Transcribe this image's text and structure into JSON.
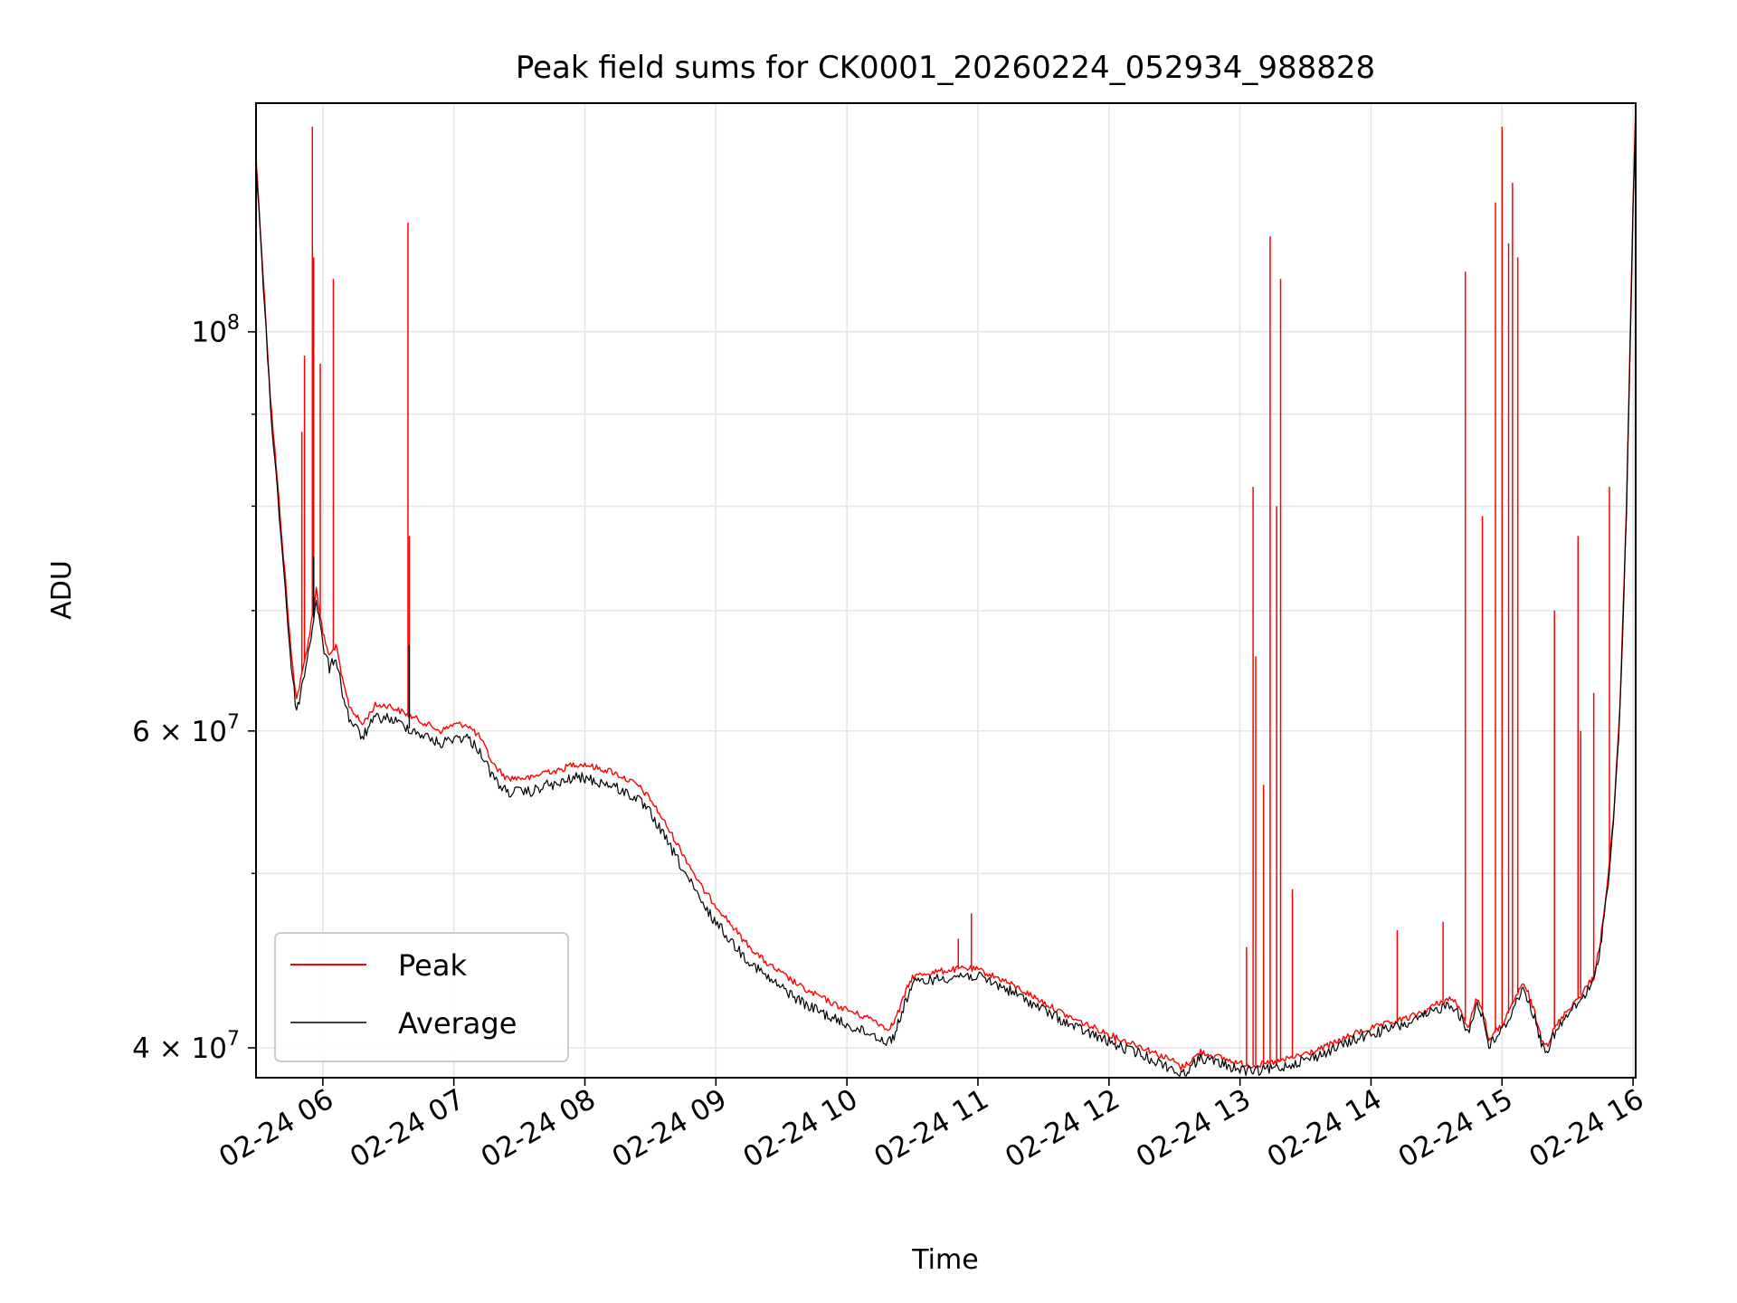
{
  "chart_data": {
    "type": "line",
    "title": "Peak field sums for CK0001_20260224_052934_988828",
    "xlabel": "Time",
    "ylabel": "ADU",
    "x_unit": "hour of 2026-02-24",
    "xlim": [
      5.49,
      16.02
    ],
    "ylim": [
      38500000,
      134000000
    ],
    "yscale": "log",
    "grid": true,
    "legend_position": "lower-left",
    "x_tick_values": [
      6,
      7,
      8,
      9,
      10,
      11,
      12,
      13,
      14,
      15,
      16
    ],
    "x_tick_labels": [
      "02-24 06",
      "02-24 07",
      "02-24 08",
      "02-24 09",
      "02-24 10",
      "02-24 11",
      "02-24 12",
      "02-24 13",
      "02-24 14",
      "02-24 15",
      "02-24 16"
    ],
    "y_major_ticks": [
      {
        "value": 40000000,
        "mantissa": "4",
        "exponent": "7"
      },
      {
        "value": 60000000,
        "mantissa": "6",
        "exponent": "7"
      },
      {
        "value": 100000000,
        "mantissa": "",
        "exponent": "8"
      }
    ],
    "y_minor_ticks": [
      50000000,
      70000000,
      80000000,
      90000000
    ],
    "colors": {
      "peak": "#ff0000",
      "average": "#000000",
      "grid": "#e6e6e6"
    },
    "series": [
      {
        "name": "Peak",
        "color": "#ff0000",
        "x": [
          5.49,
          5.6,
          5.7,
          5.76,
          5.8,
          5.85,
          5.9,
          5.95,
          6.0,
          6.05,
          6.1,
          6.15,
          6.2,
          6.3,
          6.4,
          6.5,
          6.6,
          6.7,
          6.8,
          6.9,
          7.0,
          7.1,
          7.2,
          7.3,
          7.4,
          7.5,
          7.6,
          7.7,
          7.8,
          7.9,
          8.0,
          8.1,
          8.2,
          8.3,
          8.4,
          8.5,
          8.6,
          8.7,
          8.8,
          8.9,
          9.0,
          9.1,
          9.2,
          9.3,
          9.4,
          9.5,
          9.6,
          9.7,
          9.8,
          9.9,
          10.0,
          10.1,
          10.2,
          10.3,
          10.35,
          10.4,
          10.45,
          10.5,
          10.6,
          10.7,
          10.8,
          10.9,
          11.0,
          11.1,
          11.2,
          11.3,
          11.4,
          11.5,
          11.6,
          11.7,
          11.8,
          11.9,
          12.0,
          12.1,
          12.2,
          12.3,
          12.4,
          12.5,
          12.55,
          12.6,
          12.65,
          12.7,
          12.8,
          12.9,
          13.0,
          13.1,
          13.2,
          13.3,
          13.4,
          13.5,
          13.6,
          13.7,
          13.8,
          13.9,
          14.0,
          14.1,
          14.2,
          14.3,
          14.4,
          14.5,
          14.6,
          14.65,
          14.7,
          14.75,
          14.8,
          14.85,
          14.9,
          14.95,
          15.0,
          15.05,
          15.1,
          15.15,
          15.2,
          15.25,
          15.3,
          15.35,
          15.4,
          15.5,
          15.6,
          15.7,
          15.75,
          15.8,
          15.85,
          15.9,
          15.95,
          16.0,
          16.02
        ],
        "y": [
          125000000,
          92000000,
          75000000,
          66000000,
          62500000,
          65000000,
          68000000,
          72000000,
          68000000,
          66000000,
          67000000,
          64000000,
          62000000,
          60500000,
          62000000,
          62000000,
          61500000,
          61000000,
          60500000,
          60000000,
          60500000,
          60500000,
          59500000,
          57500000,
          56500000,
          56500000,
          56500000,
          57000000,
          57000000,
          57500000,
          57500000,
          57200000,
          57000000,
          56500000,
          56000000,
          55000000,
          53500000,
          52000000,
          50500000,
          49000000,
          48000000,
          47000000,
          46000000,
          45200000,
          44500000,
          44000000,
          43500000,
          43000000,
          42700000,
          42300000,
          42000000,
          41700000,
          41500000,
          41000000,
          41200000,
          42000000,
          43000000,
          43800000,
          44000000,
          44100000,
          44200000,
          44300000,
          44200000,
          43900000,
          43600000,
          43200000,
          42800000,
          42400000,
          42000000,
          41600000,
          41300000,
          41000000,
          40700000,
          40400000,
          40200000,
          39900000,
          39600000,
          39300000,
          39000000,
          39200000,
          39500000,
          39800000,
          39600000,
          39400000,
          39200000,
          39100000,
          39200000,
          39300000,
          39500000,
          39700000,
          39900000,
          40200000,
          40500000,
          40800000,
          41000000,
          41200000,
          41400000,
          41600000,
          41900000,
          42300000,
          42600000,
          42400000,
          41600000,
          41100000,
          42700000,
          42000000,
          40400000,
          40800000,
          41200000,
          41800000,
          42600000,
          43400000,
          42900000,
          41800000,
          40500000,
          40200000,
          41000000,
          42000000,
          42800000,
          43800000,
          45800000,
          49000000,
          53500000,
          62000000,
          80000000,
          118000000,
          134000000
        ]
      },
      {
        "name": "Average",
        "color": "#000000",
        "x": [
          5.49,
          5.6,
          5.7,
          5.76,
          5.8,
          5.85,
          5.9,
          5.95,
          6.0,
          6.05,
          6.1,
          6.15,
          6.2,
          6.3,
          6.4,
          6.5,
          6.6,
          6.7,
          6.8,
          6.9,
          7.0,
          7.1,
          7.2,
          7.3,
          7.4,
          7.5,
          7.6,
          7.7,
          7.8,
          7.9,
          8.0,
          8.1,
          8.2,
          8.3,
          8.4,
          8.5,
          8.6,
          8.7,
          8.8,
          8.9,
          9.0,
          9.1,
          9.2,
          9.3,
          9.4,
          9.5,
          9.6,
          9.7,
          9.8,
          9.9,
          10.0,
          10.1,
          10.2,
          10.3,
          10.35,
          10.4,
          10.45,
          10.5,
          10.6,
          10.7,
          10.8,
          10.9,
          11.0,
          11.1,
          11.2,
          11.3,
          11.4,
          11.5,
          11.6,
          11.7,
          11.8,
          11.9,
          12.0,
          12.1,
          12.2,
          12.3,
          12.4,
          12.5,
          12.55,
          12.6,
          12.65,
          12.7,
          12.8,
          12.9,
          13.0,
          13.1,
          13.2,
          13.3,
          13.4,
          13.5,
          13.6,
          13.7,
          13.8,
          13.9,
          14.0,
          14.1,
          14.2,
          14.3,
          14.4,
          14.5,
          14.6,
          14.65,
          14.7,
          14.75,
          14.8,
          14.85,
          14.9,
          14.95,
          15.0,
          15.05,
          15.1,
          15.15,
          15.2,
          15.25,
          15.3,
          15.35,
          15.4,
          15.5,
          15.6,
          15.7,
          15.75,
          15.8,
          15.85,
          15.9,
          15.95,
          16.0,
          16.02
        ],
        "y": [
          124000000,
          91000000,
          74000000,
          65000000,
          61500000,
          64000000,
          67000000,
          71000000,
          67000000,
          65000000,
          66000000,
          63000000,
          61000000,
          59500000,
          61000000,
          61000000,
          60500000,
          60000000,
          59500000,
          59000000,
          59500000,
          59500000,
          58500000,
          56500000,
          55500000,
          55500000,
          55500000,
          56000000,
          56000000,
          56500000,
          56500000,
          56200000,
          56000000,
          55500000,
          55000000,
          54000000,
          52500000,
          51000000,
          49500000,
          48000000,
          47000000,
          46000000,
          45100000,
          44400000,
          43700000,
          43200000,
          42700000,
          42200000,
          41900000,
          41500000,
          41200000,
          40900000,
          40700000,
          40300000,
          40500000,
          41400000,
          42500000,
          43400000,
          43600000,
          43700000,
          43800000,
          43900000,
          43800000,
          43500000,
          43200000,
          42800000,
          42400000,
          42000000,
          41600000,
          41200000,
          40900000,
          40600000,
          40300000,
          40000000,
          39800000,
          39500000,
          39200000,
          38900000,
          38600000,
          38900000,
          39200000,
          39500000,
          39300000,
          39100000,
          38900000,
          38800000,
          38900000,
          39000000,
          39200000,
          39400000,
          39600000,
          39900000,
          40200000,
          40500000,
          40700000,
          40900000,
          41100000,
          41300000,
          41600000,
          42000000,
          42300000,
          42100000,
          41300000,
          40800000,
          42400000,
          41700000,
          40100000,
          40500000,
          40900000,
          41500000,
          42300000,
          43100000,
          42600000,
          41500000,
          40200000,
          39900000,
          40700000,
          41700000,
          42500000,
          43500000,
          45500000,
          48700000,
          53200000,
          61500000,
          79000000,
          117000000,
          133000000
        ]
      }
    ],
    "peak_spikes": [
      {
        "x": 5.84,
        "y": 88000000
      },
      {
        "x": 5.86,
        "y": 97000000
      },
      {
        "x": 5.92,
        "y": 130000000
      },
      {
        "x": 5.93,
        "y": 110000000
      },
      {
        "x": 5.98,
        "y": 96000000
      },
      {
        "x": 6.08,
        "y": 107000000
      },
      {
        "x": 6.65,
        "y": 115000000
      },
      {
        "x": 6.66,
        "y": 77000000
      },
      {
        "x": 10.85,
        "y": 46000000
      },
      {
        "x": 10.95,
        "y": 47500000
      },
      {
        "x": 12.05,
        "y": 40200000
      },
      {
        "x": 13.1,
        "y": 82000000
      },
      {
        "x": 13.12,
        "y": 66000000
      },
      {
        "x": 13.18,
        "y": 56000000
      },
      {
        "x": 13.23,
        "y": 113000000
      },
      {
        "x": 13.28,
        "y": 80000000
      },
      {
        "x": 13.31,
        "y": 107000000
      },
      {
        "x": 13.4,
        "y": 49000000
      },
      {
        "x": 13.05,
        "y": 45500000
      },
      {
        "x": 14.2,
        "y": 46500000
      },
      {
        "x": 14.55,
        "y": 47000000
      },
      {
        "x": 14.72,
        "y": 108000000
      },
      {
        "x": 14.85,
        "y": 79000000
      },
      {
        "x": 14.95,
        "y": 118000000
      },
      {
        "x": 15.0,
        "y": 130000000
      },
      {
        "x": 15.05,
        "y": 112000000
      },
      {
        "x": 15.08,
        "y": 121000000
      },
      {
        "x": 15.12,
        "y": 110000000
      },
      {
        "x": 15.4,
        "y": 70000000
      },
      {
        "x": 15.58,
        "y": 77000000
      },
      {
        "x": 15.6,
        "y": 60000000
      },
      {
        "x": 15.7,
        "y": 63000000
      },
      {
        "x": 15.82,
        "y": 82000000
      }
    ],
    "average_spikes": [
      {
        "x": 5.93,
        "y": 75000000
      },
      {
        "x": 6.66,
        "y": 67000000
      }
    ]
  }
}
